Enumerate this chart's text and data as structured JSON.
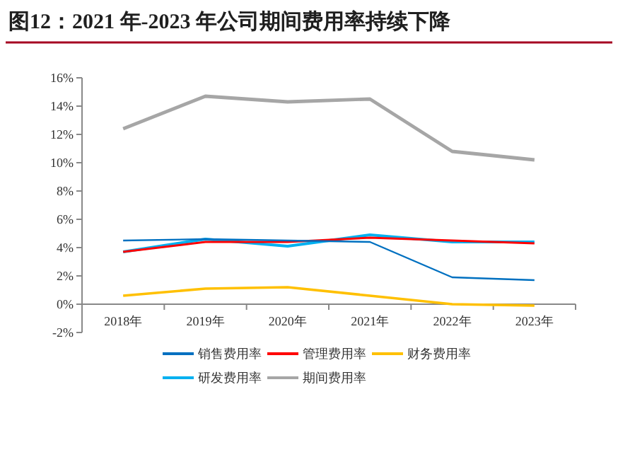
{
  "chart_data": {
    "type": "line",
    "title": "图12：2021 年-2023 年公司期间费用率持续下降",
    "categories": [
      "2018年",
      "2019年",
      "2020年",
      "2021年",
      "2022年",
      "2023年"
    ],
    "series": [
      {
        "name": "销售费用率",
        "color": "#0070c0",
        "values": [
          4.5,
          4.6,
          4.5,
          4.4,
          1.9,
          1.7
        ]
      },
      {
        "name": "管理费用率",
        "color": "#ff0000",
        "values": [
          3.7,
          4.4,
          4.4,
          4.7,
          4.5,
          4.3
        ]
      },
      {
        "name": "财务费用率",
        "color": "#ffc000",
        "values": [
          0.6,
          1.1,
          1.2,
          0.6,
          0.0,
          -0.1
        ]
      },
      {
        "name": "研发费用率",
        "color": "#00b0f0",
        "values": [
          3.7,
          4.6,
          4.1,
          4.9,
          4.4,
          4.4
        ]
      },
      {
        "name": "期间费用率",
        "color": "#a6a6a6",
        "values": [
          12.4,
          14.7,
          14.3,
          14.5,
          10.8,
          10.2
        ]
      }
    ],
    "ylim": [
      -2,
      16
    ],
    "yticks": [
      {
        "value": -2,
        "label": "-2%"
      },
      {
        "value": 0,
        "label": "0%"
      },
      {
        "value": 2,
        "label": "2%"
      },
      {
        "value": 4,
        "label": "4%"
      },
      {
        "value": 6,
        "label": "6%"
      },
      {
        "value": 8,
        "label": "8%"
      },
      {
        "value": 10,
        "label": "10%"
      },
      {
        "value": 12,
        "label": "12%"
      },
      {
        "value": 14,
        "label": "14%"
      },
      {
        "value": 16,
        "label": "16%"
      }
    ],
    "legend": "bottom",
    "marker": "none",
    "line_style": "solid"
  }
}
